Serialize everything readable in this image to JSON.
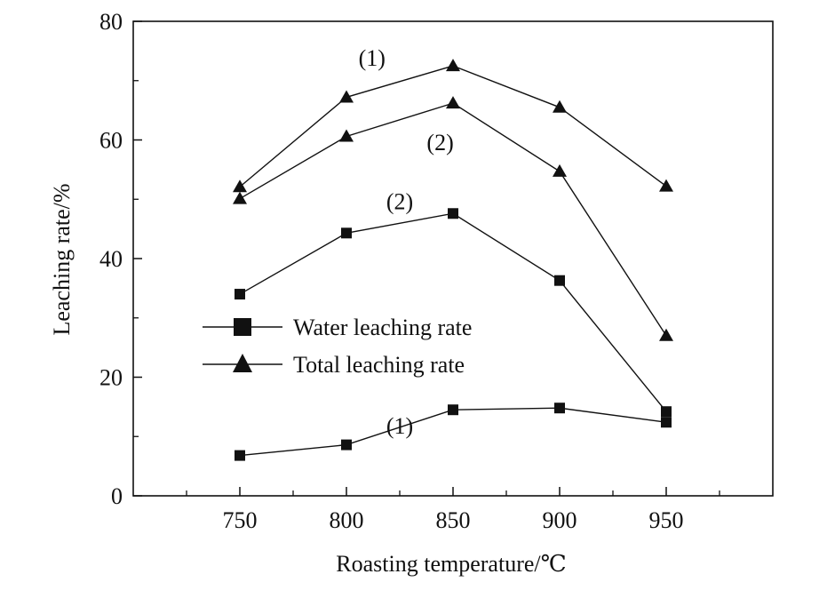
{
  "chart_data": {
    "type": "line",
    "xlabel": "Roasting temperature/℃",
    "ylabel": "Leaching rate/%",
    "xlim": [
      700,
      1000
    ],
    "ylim": [
      0,
      80
    ],
    "x_ticks": [
      750,
      800,
      850,
      900,
      950
    ],
    "y_ticks": [
      0,
      20,
      40,
      60,
      80
    ],
    "x_minor_ticks": [
      725,
      775,
      825,
      875,
      925,
      975
    ],
    "y_minor_ticks": [
      10,
      30,
      50,
      70
    ],
    "grid": false,
    "legend_placement": "center-left",
    "legend": [
      {
        "label": "Water leaching rate",
        "marker": "square"
      },
      {
        "label": "Total leaching rate",
        "marker": "triangle"
      }
    ],
    "series": [
      {
        "marker": "square",
        "curve_label": "(1)",
        "x": [
          750,
          800,
          850,
          900,
          950
        ],
        "y": [
          6.8,
          8.6,
          14.5,
          14.8,
          12.4
        ]
      },
      {
        "marker": "square",
        "curve_label": "(2)",
        "x": [
          750,
          800,
          850,
          900,
          950
        ],
        "y": [
          34.0,
          44.3,
          47.6,
          36.3,
          14.2
        ]
      },
      {
        "marker": "triangle",
        "curve_label": "(1)",
        "x": [
          750,
          800,
          850,
          900,
          950
        ],
        "y": [
          52.1,
          67.2,
          72.5,
          65.5,
          52.2
        ]
      },
      {
        "marker": "triangle",
        "curve_label": "(2)",
        "x": [
          750,
          800,
          850,
          900,
          950
        ],
        "y": [
          50.1,
          60.6,
          66.2,
          54.7,
          27.0
        ]
      }
    ]
  }
}
